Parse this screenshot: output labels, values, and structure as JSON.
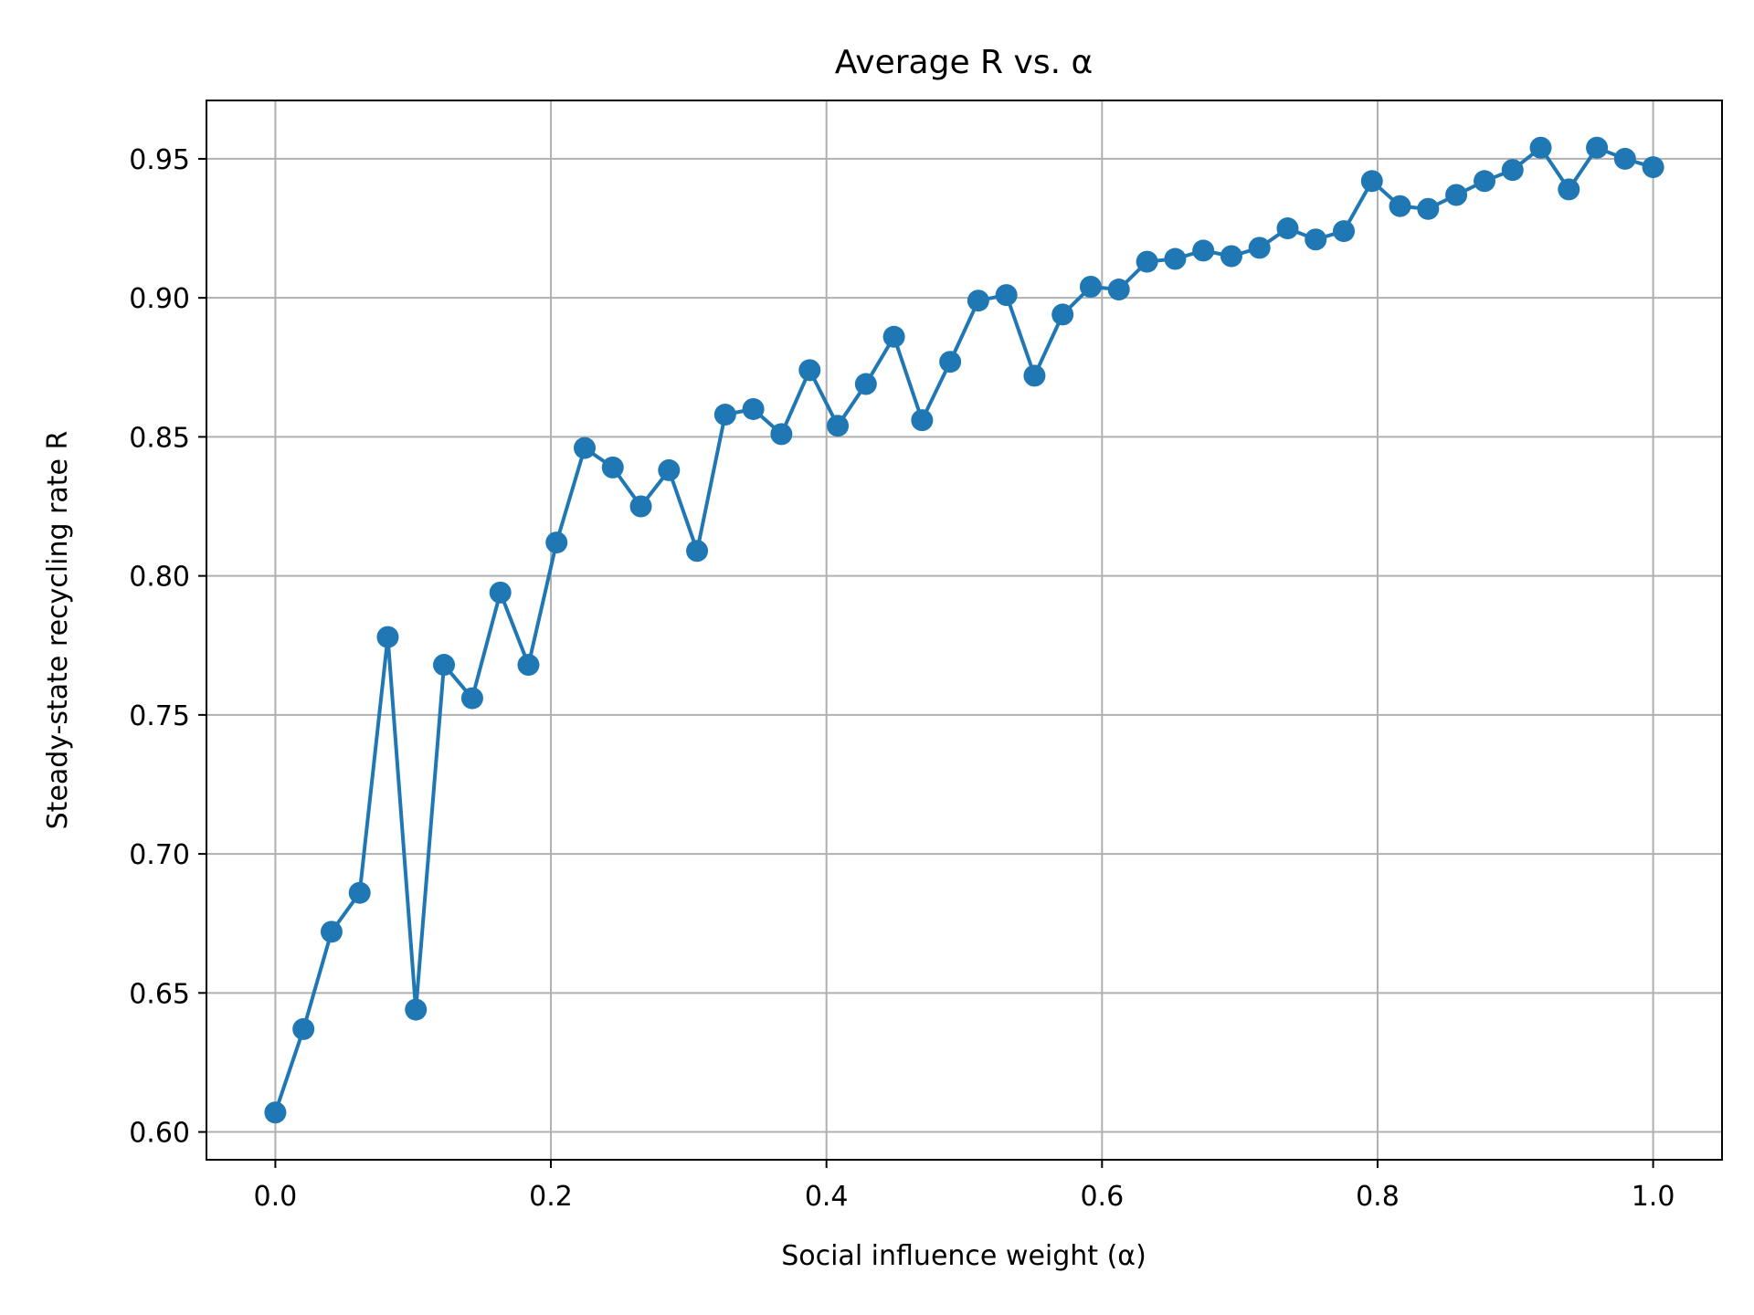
{
  "chart_data": {
    "type": "line",
    "title": "Average R vs. α",
    "xlabel": "Social influence weight (α)",
    "ylabel": "Steady-state recycling rate R",
    "xlim": [
      -0.05,
      1.05
    ],
    "ylim": [
      0.59,
      0.971
    ],
    "xticks": [
      0.0,
      0.2,
      0.4,
      0.6,
      0.8,
      1.0
    ],
    "xtick_labels": [
      "0.0",
      "0.2",
      "0.4",
      "0.6",
      "0.8",
      "1.0"
    ],
    "yticks": [
      0.6,
      0.65,
      0.7,
      0.75,
      0.8,
      0.85,
      0.9,
      0.95
    ],
    "ytick_labels": [
      "0.60",
      "0.65",
      "0.70",
      "0.75",
      "0.80",
      "0.85",
      "0.90",
      "0.95"
    ],
    "grid": true,
    "line_color": "#1f77b4",
    "marker": "circle",
    "x": [
      0.0,
      0.0204,
      0.0408,
      0.0612,
      0.0816,
      0.102,
      0.1224,
      0.1429,
      0.1633,
      0.1837,
      0.2041,
      0.2245,
      0.2449,
      0.2653,
      0.2857,
      0.3061,
      0.3265,
      0.3469,
      0.3673,
      0.3878,
      0.4082,
      0.4286,
      0.449,
      0.4694,
      0.4898,
      0.5102,
      0.5306,
      0.551,
      0.5714,
      0.5918,
      0.6122,
      0.6327,
      0.6531,
      0.6735,
      0.6939,
      0.7143,
      0.7347,
      0.7551,
      0.7755,
      0.7959,
      0.8163,
      0.8367,
      0.8571,
      0.8776,
      0.898,
      0.9184,
      0.9388,
      0.9592,
      0.9796,
      1.0
    ],
    "y": [
      0.607,
      0.637,
      0.672,
      0.686,
      0.778,
      0.644,
      0.768,
      0.756,
      0.794,
      0.768,
      0.812,
      0.846,
      0.839,
      0.825,
      0.838,
      0.809,
      0.858,
      0.86,
      0.851,
      0.874,
      0.854,
      0.869,
      0.886,
      0.856,
      0.877,
      0.899,
      0.901,
      0.872,
      0.894,
      0.904,
      0.903,
      0.913,
      0.914,
      0.917,
      0.915,
      0.918,
      0.925,
      0.921,
      0.924,
      0.942,
      0.933,
      0.932,
      0.937,
      0.942,
      0.946,
      0.954,
      0.939,
      0.954,
      0.95,
      0.947
    ]
  }
}
